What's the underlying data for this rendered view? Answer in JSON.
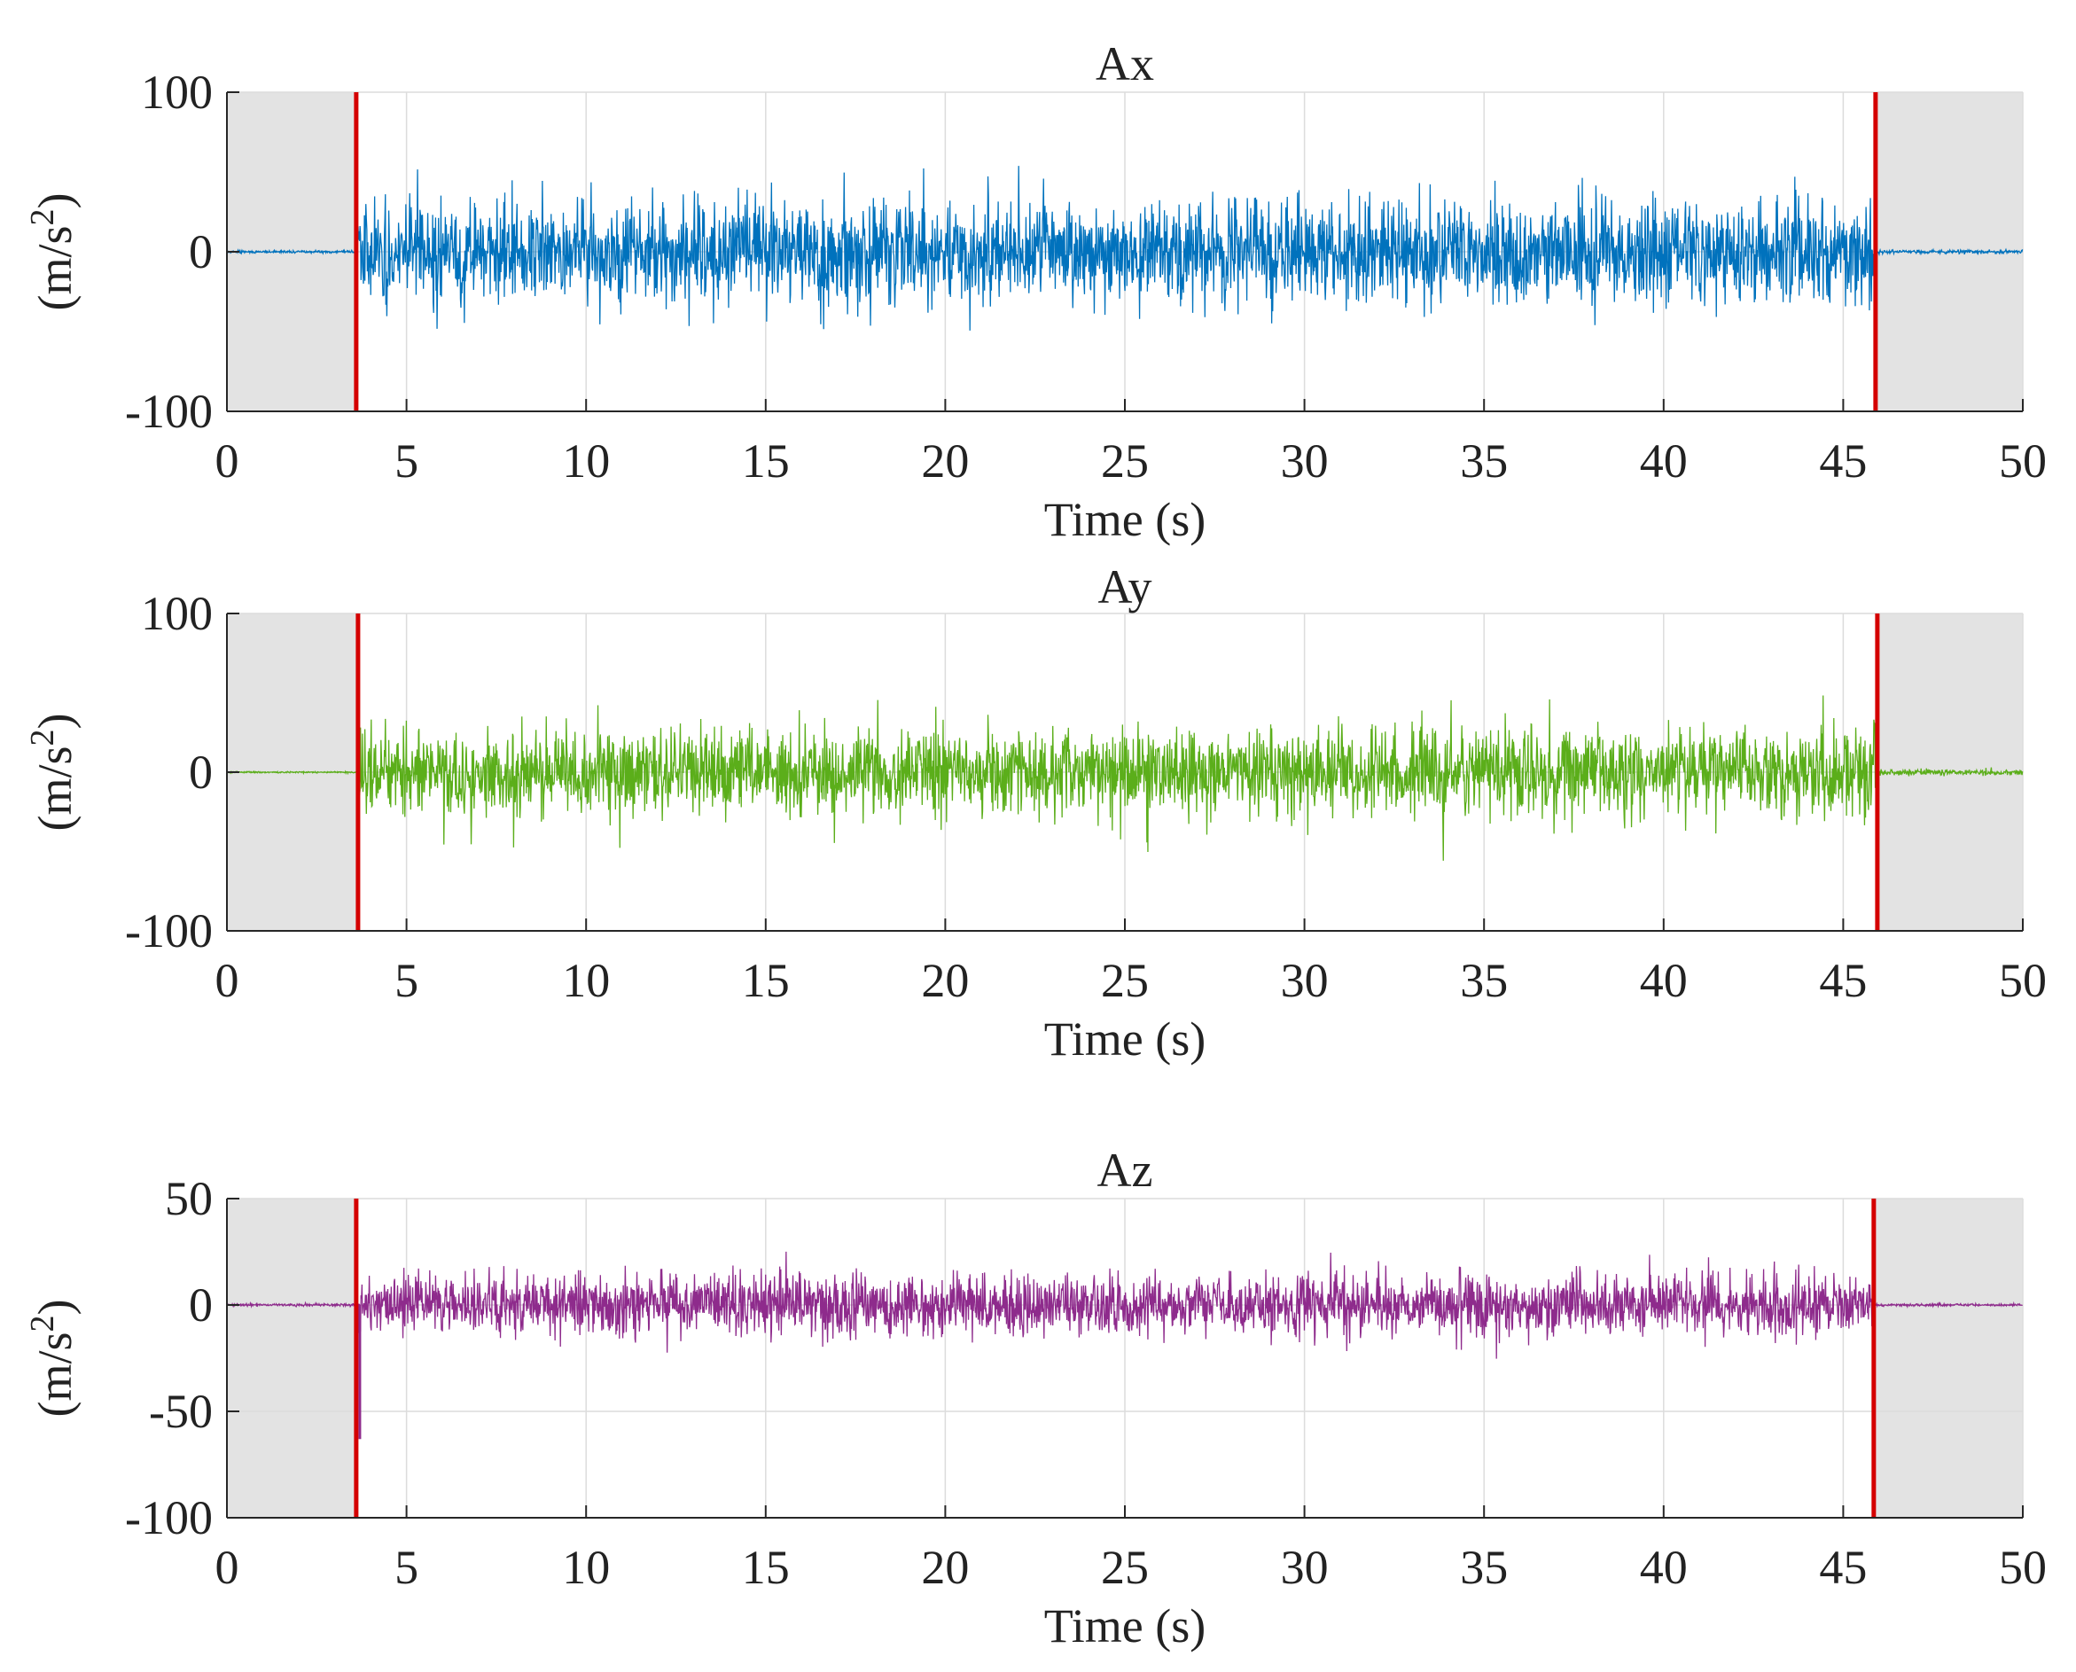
{
  "chart_data": [
    {
      "type": "line",
      "title": "Ax",
      "xlabel": "Time (s)",
      "ylabel": "(m/s²)",
      "ylabel_parts": {
        "prefix": "(m/s",
        "superscript": "2",
        "suffix": ")"
      },
      "xlim": [
        0,
        50
      ],
      "ylim": [
        -100,
        100
      ],
      "xticks": [
        0,
        5,
        10,
        15,
        20,
        25,
        30,
        35,
        40,
        45,
        50
      ],
      "xtick_labels": [
        "0",
        "5",
        "10",
        "15",
        "20",
        "25",
        "30",
        "35",
        "40",
        "45",
        "50"
      ],
      "yticks": [
        -100,
        0,
        100
      ],
      "ytick_labels": [
        "-100",
        "0",
        "100"
      ],
      "grid": true,
      "color": "#0072BD",
      "shaded_regions": [
        [
          0,
          3.6
        ],
        [
          45.9,
          50
        ]
      ],
      "marker_lines": [
        3.6,
        45.9
      ],
      "marker_color": "#D40000",
      "series": [
        {
          "name": "Ax",
          "segments": [
            {
              "t_start": 0,
              "t_end": 3.6,
              "typical_amplitude": 0.8,
              "peak": 1.5
            },
            {
              "t_start": 3.6,
              "t_end": 45.9,
              "typical_amplitude": 33,
              "peak": 55
            },
            {
              "t_start": 45.9,
              "t_end": 50,
              "typical_amplitude": 1.2,
              "peak": 2
            }
          ]
        }
      ]
    },
    {
      "type": "line",
      "title": "Ay",
      "xlabel": "Time (s)",
      "ylabel": "(m/s²)",
      "ylabel_parts": {
        "prefix": "(m/s",
        "superscript": "2",
        "suffix": ")"
      },
      "xlim": [
        0,
        50
      ],
      "ylim": [
        -100,
        100
      ],
      "xticks": [
        0,
        5,
        10,
        15,
        20,
        25,
        30,
        35,
        40,
        45,
        50
      ],
      "xtick_labels": [
        "0",
        "5",
        "10",
        "15",
        "20",
        "25",
        "30",
        "35",
        "40",
        "45",
        "50"
      ],
      "yticks": [
        -100,
        0,
        100
      ],
      "ytick_labels": [
        "-100",
        "0",
        "100"
      ],
      "grid": true,
      "color": "#5BAE1A",
      "shaded_regions": [
        [
          0,
          3.65
        ],
        [
          45.95,
          50
        ]
      ],
      "marker_lines": [
        3.65,
        45.95
      ],
      "marker_color": "#D40000",
      "series": [
        {
          "name": "Ay",
          "segments": [
            {
              "t_start": 0,
              "t_end": 3.65,
              "typical_amplitude": 0.5,
              "peak": 1
            },
            {
              "t_start": 3.65,
              "t_end": 45.95,
              "typical_amplitude": 28,
              "peak": 58
            },
            {
              "t_start": 45.95,
              "t_end": 50,
              "typical_amplitude": 2,
              "peak": 4
            }
          ]
        }
      ]
    },
    {
      "type": "line",
      "title": "Az",
      "xlabel": "Time (s)",
      "ylabel": "(m/s²)",
      "ylabel_parts": {
        "prefix": "(m/s",
        "superscript": "2",
        "suffix": ")"
      },
      "xlim": [
        0,
        50
      ],
      "ylim": [
        -100,
        50
      ],
      "xticks": [
        0,
        5,
        10,
        15,
        20,
        25,
        30,
        35,
        40,
        45,
        50
      ],
      "xtick_labels": [
        "0",
        "5",
        "10",
        "15",
        "20",
        "25",
        "30",
        "35",
        "40",
        "45",
        "50"
      ],
      "yticks": [
        -100,
        -50,
        0,
        50
      ],
      "ytick_labels": [
        "-100",
        "-50",
        "0",
        "50"
      ],
      "grid": true,
      "color": "#8E2B8C",
      "shaded_regions": [
        [
          0,
          3.6
        ],
        [
          45.85,
          50
        ]
      ],
      "marker_lines": [
        3.6,
        45.85
      ],
      "marker_color": "#D40000",
      "series": [
        {
          "name": "Az",
          "segments": [
            {
              "t_start": 0,
              "t_end": 3.6,
              "typical_amplitude": 0.6,
              "peak": 1
            },
            {
              "t_start": 3.6,
              "t_end": 45.85,
              "typical_amplitude": 15,
              "peak": 30
            },
            {
              "t_start": 45.85,
              "t_end": 50,
              "typical_amplitude": 0.6,
              "peak": 1
            }
          ]
        },
        {
          "name": "Az spike",
          "spike_time": 3.7,
          "spike_value": -63
        }
      ]
    }
  ]
}
